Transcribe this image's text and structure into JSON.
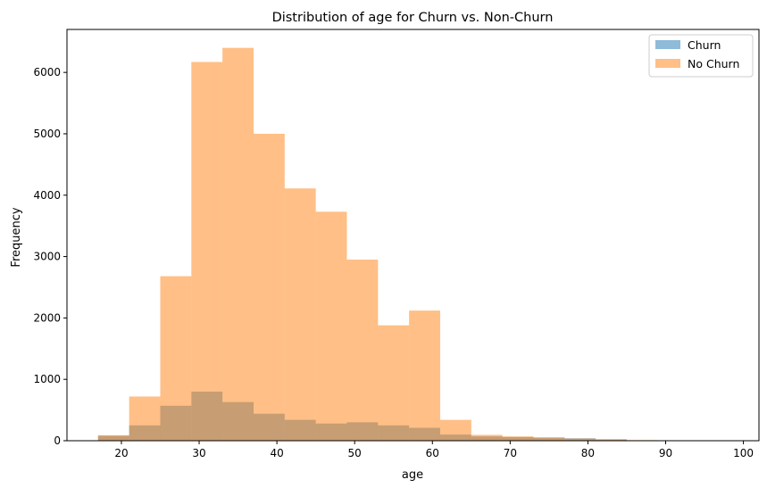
{
  "chart_data": {
    "type": "bar",
    "title": "Distribution of age for Churn vs. Non-Churn",
    "xlabel": "age",
    "ylabel": "Frequency",
    "xlim": [
      13,
      102
    ],
    "ylim": [
      0,
      6700
    ],
    "xticks": [
      20,
      30,
      40,
      50,
      60,
      70,
      80,
      90,
      100
    ],
    "yticks": [
      0,
      1000,
      2000,
      3000,
      4000,
      5000,
      6000
    ],
    "grid": false,
    "legend_position": "top-right",
    "bin_edges": [
      17,
      21,
      25,
      29,
      33,
      37,
      41,
      45,
      49,
      53,
      57,
      61,
      65,
      69,
      73,
      77,
      81,
      85,
      89,
      93,
      97
    ],
    "series": [
      {
        "name": "Churn",
        "color": "#1f77b4",
        "opacity": 0.5,
        "values": [
          80,
          250,
          570,
          800,
          630,
          440,
          340,
          280,
          300,
          250,
          210,
          100,
          70,
          60,
          50,
          40,
          20,
          5,
          2,
          1
        ]
      },
      {
        "name": "No Churn",
        "color": "#ff7f0e",
        "opacity": 0.5,
        "values": [
          90,
          720,
          2680,
          6170,
          6400,
          5000,
          4110,
          3730,
          2950,
          1880,
          2120,
          340,
          95,
          70,
          55,
          35,
          25,
          10,
          5,
          0
        ]
      }
    ]
  }
}
